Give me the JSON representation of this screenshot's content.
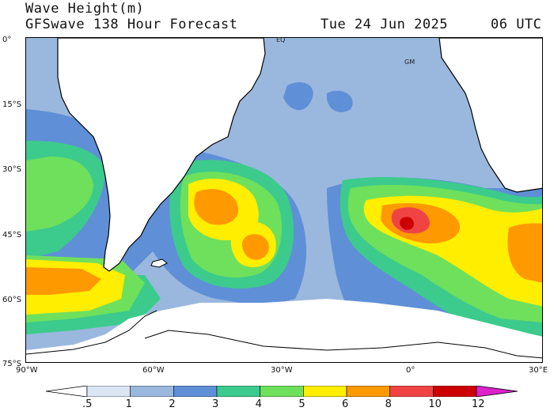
{
  "header": {
    "variable": "Wave Height(m)",
    "model_line": "GFSwave 138 Hour Forecast",
    "valid_date": "Tue 24 Jun 2025",
    "valid_time": "06 UTC"
  },
  "map": {
    "region": "South Atlantic",
    "projection": "cylindrical equidistant",
    "lat_range": [
      -75,
      0
    ],
    "lon_range": [
      -90,
      30
    ],
    "lat_labels": [
      "0°",
      "15°S",
      "30°S",
      "45°S",
      "60°S",
      "75°S"
    ],
    "lon_labels": [
      "90°W",
      "60°W",
      "30°W",
      "0°",
      "30°E"
    ],
    "annotations": [
      "EQ",
      "GM"
    ],
    "ocean_base_color": "#9ab8de",
    "land_color": "#ffffff",
    "ice_color": "#ffffff"
  },
  "colorbar": {
    "labels": [
      ".5",
      "1",
      "2",
      "3",
      "4",
      "5",
      "6",
      "8",
      "10",
      "12"
    ],
    "colors": [
      "#ffffff",
      "#dbe6f5",
      "#9ab8de",
      "#5f8fd6",
      "#3ccb8c",
      "#6fe05c",
      "#ffee00",
      "#ff9900",
      "#f04444",
      "#cc0000",
      "#dd22cc"
    ]
  }
}
